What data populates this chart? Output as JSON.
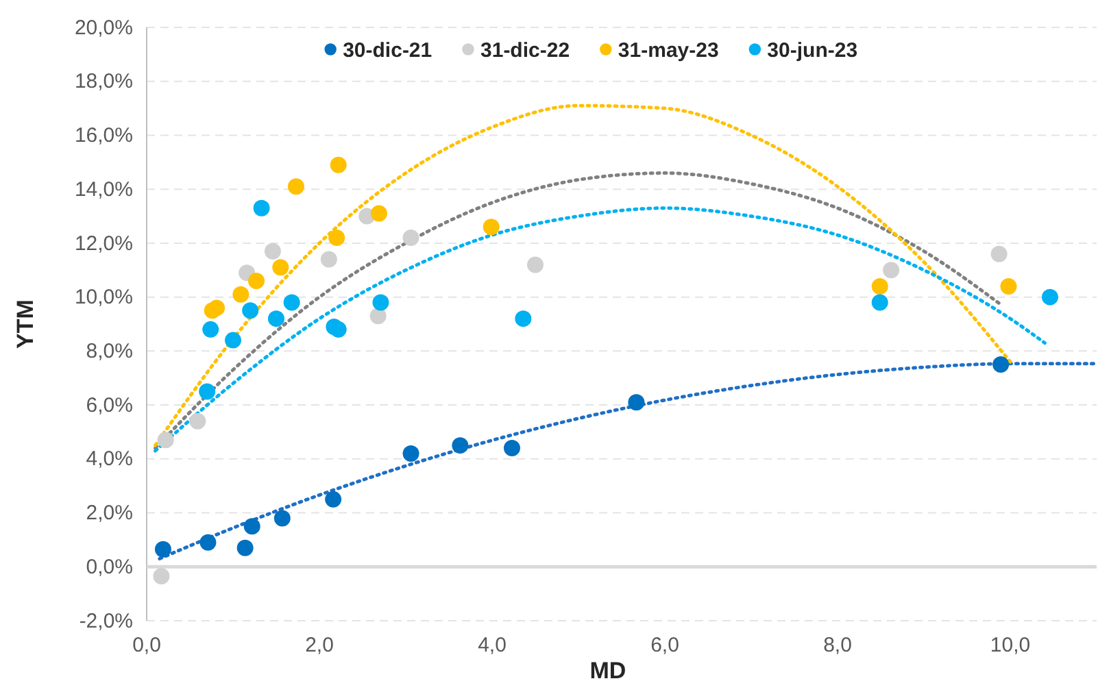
{
  "chart_data": {
    "type": "scatter",
    "xlabel": "MD",
    "ylabel": "YTM",
    "xlim": [
      0,
      11
    ],
    "ylim": [
      -2,
      20
    ],
    "xticks": [
      {
        "value": 0,
        "label": "0,0"
      },
      {
        "value": 2,
        "label": "2,0"
      },
      {
        "value": 4,
        "label": "4,0"
      },
      {
        "value": 6,
        "label": "6,0"
      },
      {
        "value": 8,
        "label": "8,0"
      },
      {
        "value": 10,
        "label": "10,0"
      }
    ],
    "yticks": [
      {
        "value": -2,
        "label": "-2,0%"
      },
      {
        "value": 0,
        "label": "0,0%"
      },
      {
        "value": 2,
        "label": "2,0%"
      },
      {
        "value": 4,
        "label": "4,0%"
      },
      {
        "value": 6,
        "label": "6,0%"
      },
      {
        "value": 8,
        "label": "8,0%"
      },
      {
        "value": 10,
        "label": "10,0%"
      },
      {
        "value": 12,
        "label": "12,0%"
      },
      {
        "value": 14,
        "label": "14,0%"
      },
      {
        "value": 16,
        "label": "16,0%"
      },
      {
        "value": 18,
        "label": "18,0%"
      },
      {
        "value": 20,
        "label": "20,0%"
      }
    ],
    "grid": "y",
    "legend": "top",
    "marker": "circle",
    "series": [
      {
        "name": "30-dic-21",
        "color": "#0070c0",
        "x": [
          0.19,
          0.71,
          1.14,
          1.22,
          1.57,
          2.16,
          3.06,
          3.63,
          4.23,
          5.67,
          9.89
        ],
        "values": [
          0.65,
          0.9,
          0.7,
          1.5,
          1.8,
          2.5,
          4.2,
          4.5,
          4.4,
          6.1,
          7.5
        ]
      },
      {
        "name": "31-dic-22",
        "color": "#d0d0d0",
        "x": [
          0.17,
          0.22,
          0.59,
          1.16,
          1.46,
          2.11,
          2.55,
          2.68,
          3.06,
          4.5,
          8.62,
          9.87
        ],
        "values": [
          -0.35,
          4.7,
          5.4,
          10.9,
          11.7,
          11.4,
          13.0,
          9.3,
          12.2,
          11.2,
          11.0,
          11.6
        ]
      },
      {
        "name": "31-may-23",
        "color": "#ffc000",
        "x": [
          0.76,
          0.81,
          1.09,
          1.27,
          1.55,
          1.73,
          2.2,
          2.22,
          2.69,
          3.99,
          8.49,
          9.98
        ],
        "values": [
          9.5,
          9.6,
          10.1,
          10.6,
          11.1,
          14.1,
          12.2,
          14.9,
          13.1,
          12.6,
          10.4,
          10.4
        ]
      },
      {
        "name": "30-jun-23",
        "color": "#00b0f0",
        "x": [
          0.7,
          0.74,
          1.0,
          1.2,
          1.33,
          1.5,
          1.68,
          2.17,
          2.22,
          2.71,
          4.36,
          8.49,
          10.46
        ],
        "values": [
          6.5,
          8.8,
          8.4,
          9.5,
          13.3,
          9.2,
          9.8,
          8.9,
          8.8,
          9.8,
          9.2,
          9.8,
          10.0
        ]
      },
      {
        "type": "line",
        "color": "#1f6fc5",
        "line_style": "dotted",
        "marker": "none",
        "x": [
          0.15,
          1,
          2,
          3,
          4,
          5,
          6,
          7,
          8,
          9,
          10,
          11
        ],
        "values": [
          0.3,
          1.44,
          2.66,
          3.74,
          4.69,
          5.5,
          6.18,
          6.72,
          7.13,
          7.4,
          7.53,
          7.53
        ]
      },
      {
        "type": "line",
        "color": "#808080",
        "line_style": "dotted",
        "marker": "none",
        "x": [
          0.1,
          1,
          2,
          3,
          4,
          5,
          6,
          7,
          8,
          9,
          9.9
        ],
        "values": [
          4.4,
          7.3,
          10.0,
          12.0,
          13.5,
          14.35,
          14.6,
          14.2,
          13.3,
          11.7,
          9.7
        ]
      },
      {
        "type": "line",
        "color": "#ffc000",
        "line_style": "dotted",
        "marker": "none",
        "x": [
          0.1,
          1,
          2,
          3,
          4,
          5,
          6,
          7,
          8,
          9,
          10
        ],
        "values": [
          4.5,
          8.45,
          12.0,
          14.6,
          16.3,
          17.1,
          17.0,
          16.0,
          14.1,
          11.3,
          7.6
        ]
      },
      {
        "type": "line",
        "color": "#00b0f0",
        "line_style": "dotted",
        "marker": "none",
        "x": [
          0.1,
          1,
          2,
          3,
          4,
          5,
          6,
          7,
          8,
          9,
          10,
          10.4
        ],
        "values": [
          4.3,
          6.8,
          9.2,
          11.0,
          12.3,
          13.0,
          13.3,
          13.0,
          12.3,
          11.0,
          9.2,
          8.3
        ]
      }
    ]
  }
}
